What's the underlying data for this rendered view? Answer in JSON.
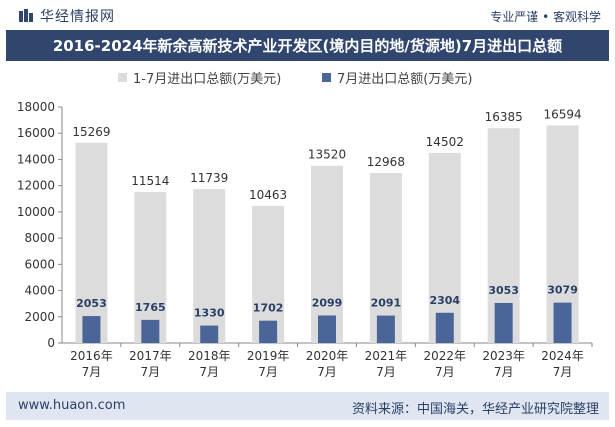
{
  "header": {
    "brand": "华经情报网",
    "tagline": "专业严谨 • 客观科学"
  },
  "title": "2016-2024年新余高新技术产业开发区(境内目的地/货源地)7月进出口总额",
  "footer": {
    "url": "www.huaon.com",
    "source": "资料来源：中国海关，华经产业研究院整理"
  },
  "colors": {
    "series1": "#dcdcdc",
    "series2": "#4a6598",
    "title_bg": "#30466f",
    "footer_bg": "#dfe6f1"
  },
  "chart_data": {
    "type": "bar",
    "categories": [
      "2016年\n7月",
      "2017年\n7月",
      "2018年\n7月",
      "2019年\n7月",
      "2020年\n7月",
      "2021年\n7月",
      "2022年\n7月",
      "2023年\n7月",
      "2024年\n7月"
    ],
    "series": [
      {
        "name": "1-7月进出口总额(万美元)",
        "values": [
          15269,
          11514,
          11739,
          10463,
          13520,
          12968,
          14502,
          16385,
          16594
        ]
      },
      {
        "name": "7月进出口总额(万美元)",
        "values": [
          2053,
          1765,
          1330,
          1702,
          2099,
          2091,
          2304,
          3053,
          3079
        ]
      }
    ],
    "ylim": [
      0,
      18000
    ],
    "yticks": [
      0,
      2000,
      4000,
      6000,
      8000,
      10000,
      12000,
      14000,
      16000,
      18000
    ],
    "legend": "top-center",
    "grid": false
  }
}
